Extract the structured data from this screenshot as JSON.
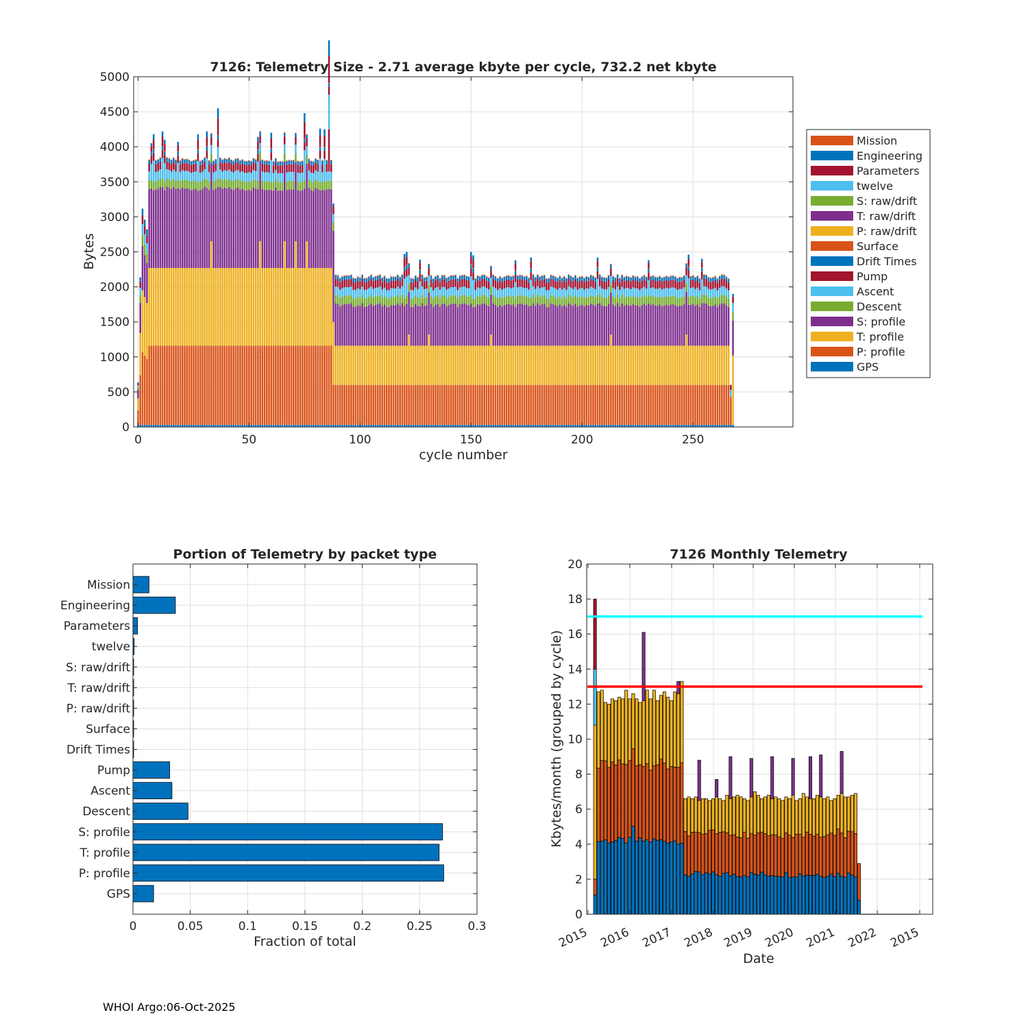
{
  "chart_data": [
    {
      "id": "telemetry_size",
      "type": "bar",
      "stacked": true,
      "title": "7126: Telemetry Size - 2.71 average kbyte per cycle,  732.2 net kbyte",
      "xlabel": "cycle number",
      "ylabel": "Bytes",
      "xlim": [
        -2,
        295
      ],
      "ylim": [
        0,
        5000
      ],
      "xticks": [
        0,
        50,
        100,
        150,
        200,
        250
      ],
      "yticks": [
        0,
        500,
        1000,
        1500,
        2000,
        2500,
        3000,
        3500,
        4000,
        4500,
        5000
      ],
      "grid": true,
      "legend_position": "outside-right",
      "legend": [
        "Mission",
        "Engineering",
        "Parameters",
        "twelve",
        "S: raw/drift",
        "T: raw/drift",
        "P: raw/drift",
        "Surface",
        "Drift Times",
        "Pump",
        "Ascent",
        "Descent",
        "S: profile",
        "T: profile",
        "P: profile",
        "GPS"
      ],
      "series_colors": {
        "GPS": "#0072BD",
        "P: profile": "#D95319",
        "T: profile": "#EDB120",
        "S: profile": "#7E2F8E",
        "Descent": "#77AC30",
        "Ascent": "#4DBEEE",
        "Pump": "#A2142F",
        "Drift Times": "#0072BD",
        "Surface": "#D95319",
        "P: raw/drift": "#EDB120",
        "T: raw/drift": "#7E2F8E",
        "S: raw/drift": "#77AC30",
        "twelve": "#4DBEEE",
        "Parameters": "#A2142F",
        "Engineering": "#0072BD",
        "Mission": "#D95319"
      },
      "segment_order": [
        "GPS",
        "P: profile",
        "T: profile",
        "S: profile",
        "Descent",
        "Ascent",
        "Pump",
        "Drift Times",
        "Engineering",
        "Mission"
      ],
      "phase1": {
        "cycles": [
          5,
          87
        ],
        "GPS": 30,
        "P: profile": 1130,
        "T: profile": 1110,
        "S: profile": 1130,
        "Descent": 120,
        "Ascent": 130,
        "Pump": 110,
        "Drift Times": 10,
        "Engineering": 40,
        "Mission": 10
      },
      "phase2": {
        "cycles": [
          89,
          267
        ],
        "GPS": 30,
        "P: profile": 570,
        "T: profile": 560,
        "S: profile": 580,
        "Descent": 120,
        "Ascent": 120,
        "Pump": 110,
        "Drift Times": 10,
        "Engineering": 40,
        "Mission": 10
      },
      "spikes": [
        [
          3,
          3300
        ],
        [
          6,
          4050
        ],
        [
          7,
          4180
        ],
        [
          11,
          4220
        ],
        [
          12,
          4100
        ],
        [
          18,
          4070
        ],
        [
          27,
          4180
        ],
        [
          31,
          4220
        ],
        [
          36,
          4550
        ],
        [
          54,
          4140
        ],
        [
          60,
          4200
        ],
        [
          66,
          4180
        ],
        [
          75,
          4480
        ],
        [
          82,
          4260
        ],
        [
          84,
          4250
        ],
        [
          86,
          4920
        ],
        [
          88,
          3140
        ],
        [
          120,
          2470
        ],
        [
          121,
          2500
        ],
        [
          127,
          2390
        ],
        [
          150,
          2500
        ],
        [
          151,
          2450
        ],
        [
          170,
          2380
        ],
        [
          177,
          2420
        ],
        [
          207,
          2420
        ],
        [
          230,
          2380
        ],
        [
          248,
          2460
        ],
        [
          254,
          2400
        ],
        [
          268,
          1900
        ]
      ],
      "tall_T_profile_cycles": [
        33,
        55,
        66,
        71,
        76,
        122,
        131,
        159,
        213,
        247
      ]
    },
    {
      "id": "portion_by_packet",
      "type": "bar",
      "orientation": "horizontal",
      "title": "Portion of Telemetry by packet type",
      "xlabel": "Fraction of total",
      "ylabel": "",
      "xlim": [
        0,
        0.3
      ],
      "xticks": [
        0,
        0.05,
        0.1,
        0.15,
        0.2,
        0.25,
        0.3
      ],
      "xtick_labels": [
        "0",
        "0.05",
        "0.1",
        "0.15",
        "0.2",
        "0.25",
        "0.3"
      ],
      "grid": true,
      "bar_color": "#0072BD",
      "categories": [
        "Mission",
        "Engineering",
        "Parameters",
        "twelve",
        "S: raw/drift",
        "T: raw/drift",
        "P: raw/drift",
        "Surface",
        "Drift Times",
        "Pump",
        "Ascent",
        "Descent",
        "S: profile",
        "T: profile",
        "P: profile",
        "GPS"
      ],
      "values": [
        0.014,
        0.037,
        0.004,
        0.001,
        0.0005,
        0.0005,
        0.0005,
        0.0005,
        0.0005,
        0.032,
        0.034,
        0.048,
        0.27,
        0.267,
        0.271,
        0.018
      ]
    },
    {
      "id": "monthly_telemetry",
      "type": "bar",
      "stacked": true,
      "title": "7126 Monthly Telemetry",
      "xlabel": "Date",
      "ylabel": "Kbytes/month (grouped by cycle)",
      "ylim": [
        0,
        20
      ],
      "yticks": [
        0,
        2,
        4,
        6,
        8,
        10,
        12,
        14,
        16,
        18,
        20
      ],
      "xtick_labels": [
        "2015",
        "2016",
        "2017",
        "2018",
        "2019",
        "2020",
        "2021",
        "2022",
        "2015"
      ],
      "grid": true,
      "segment_colors": [
        "#0072BD",
        "#D95319",
        "#EDB120",
        "#7E2F8E"
      ],
      "reference_lines": [
        {
          "y": 17,
          "color": "#00FFFF"
        },
        {
          "y": 13,
          "color": "#FF0000"
        }
      ],
      "first_month": {
        "GPS": 1.1,
        "P": 0.9,
        "T": 8.8,
        "S": 0.0,
        "extra": [
          [
            10.8,
            14.0,
            "#4DBEEE"
          ],
          [
            14.0,
            18.0,
            "#A2142F"
          ]
        ]
      },
      "totals_phase1": [
        12.7,
        12.8,
        12.1,
        12.0,
        12.3,
        12.2,
        12.4,
        12.3,
        12.8,
        12.3,
        12.6,
        12.3,
        12.1,
        12.2,
        12.8,
        12.3,
        12.8,
        12.2,
        12.5,
        12.7,
        12.4,
        12.2,
        12.7,
        12.6,
        13.3
      ],
      "totals_phase2": [
        6.6,
        6.7,
        6.6,
        6.7,
        6.5,
        6.6,
        6.6,
        6.5,
        6.6,
        6.7,
        6.6,
        6.5,
        6.8,
        6.6,
        6.7,
        6.8,
        6.7,
        6.6,
        6.5,
        6.7,
        7.0,
        6.8,
        6.6,
        6.7,
        6.8,
        6.6,
        6.7,
        6.6,
        6.5,
        6.7,
        6.6,
        6.8,
        6.5,
        6.6,
        6.9,
        6.7,
        6.6,
        6.6,
        6.8,
        6.7,
        6.6,
        6.7,
        6.5,
        6.6,
        6.8,
        6.9,
        6.7,
        6.7,
        6.8,
        6.9
      ],
      "spikes": [
        [
          14,
          16.1,
          "#7E2F8E"
        ],
        [
          24,
          13.3,
          "#7E2F8E"
        ],
        [
          25,
          8.9,
          "#7E2F8E"
        ],
        [
          30,
          8.8,
          "#7E2F8E"
        ],
        [
          35,
          7.7,
          "#7E2F8E"
        ],
        [
          39,
          9.0,
          "#7E2F8E"
        ],
        [
          45,
          8.9,
          "#7E2F8E"
        ],
        [
          51,
          9.0,
          "#7E2F8E"
        ],
        [
          57,
          8.9,
          "#7E2F8E"
        ],
        [
          62,
          9.0,
          "#7E2F8E"
        ],
        [
          65,
          9.1,
          "#7E2F8E"
        ],
        [
          71,
          9.3,
          "#7E2F8E"
        ]
      ],
      "last_month": {
        "GPS": 0.8,
        "P": 2.1,
        "T": 0.0,
        "S": 0.0
      }
    }
  ],
  "footer": "WHOI Argo:06-Oct-2025"
}
